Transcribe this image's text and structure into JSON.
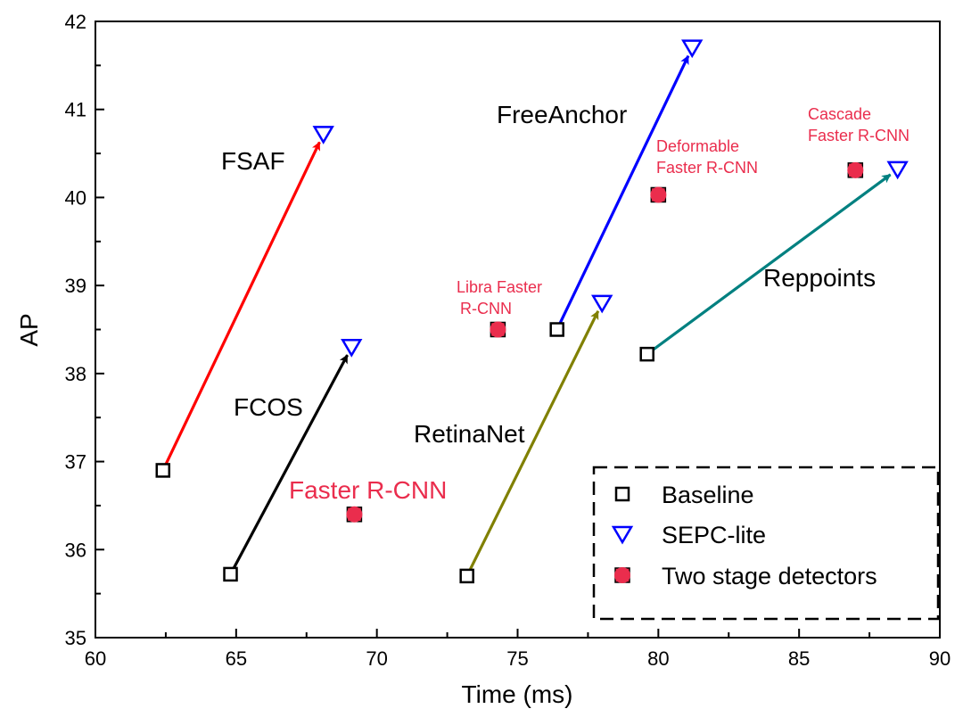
{
  "chart_data": {
    "type": "scatter",
    "xlabel": "Time (ms)",
    "ylabel": "AP",
    "xlim": [
      60,
      90
    ],
    "ylim": [
      35,
      42
    ],
    "xticks": [
      "60",
      "65",
      "70",
      "75",
      "80",
      "85",
      "90"
    ],
    "yticks": [
      "35",
      "36",
      "37",
      "38",
      "39",
      "40",
      "41",
      "42"
    ],
    "grid": false,
    "legend": {
      "placement": "bottom-right",
      "entries": [
        {
          "key": "baseline",
          "label": "Baseline",
          "marker": "open-square",
          "color": "#000000"
        },
        {
          "key": "sepc",
          "label": "SEPC-lite",
          "marker": "open-triangle-down",
          "color": "#0000ff"
        },
        {
          "key": "two_stage",
          "label": "Two stage detectors",
          "marker": "filled-circle-square",
          "color": "#ea2d4d"
        }
      ]
    },
    "pairs": [
      {
        "name": "FSAF",
        "baseline": [
          62.4,
          36.9
        ],
        "sepc": [
          68.1,
          40.72
        ],
        "arrow_color": "#ff0000",
        "label_color": "#000000"
      },
      {
        "name": "FCOS",
        "baseline": [
          64.8,
          35.72
        ],
        "sepc": [
          69.1,
          38.3
        ],
        "arrow_color": "#000000",
        "label_color": "#000000"
      },
      {
        "name": "RetinaNet",
        "baseline": [
          73.2,
          35.7
        ],
        "sepc": [
          78.0,
          38.8
        ],
        "arrow_color": "#808000",
        "label_color": "#000000"
      },
      {
        "name": "FreeAnchor",
        "baseline": [
          76.4,
          38.5
        ],
        "sepc": [
          81.2,
          41.7
        ],
        "arrow_color": "#0000ff",
        "label_color": "#000000"
      },
      {
        "name": "Reppoints",
        "baseline": [
          79.6,
          38.22
        ],
        "sepc": [
          88.5,
          40.32
        ],
        "arrow_color": "#008080",
        "label_color": "#000000"
      }
    ],
    "two_stage": [
      {
        "name": "Faster R-CNN",
        "x": 69.2,
        "y": 36.4
      },
      {
        "name": "Libra Faster R-CNN",
        "x": 74.3,
        "y": 38.5
      },
      {
        "name": "Deformable Faster R-CNN",
        "x": 80.0,
        "y": 40.03
      },
      {
        "name": "Cascade Faster R-CNN",
        "x": 87.0,
        "y": 40.31
      }
    ],
    "annotations": [
      {
        "key": "fsaf",
        "lines": [
          "FSAF"
        ],
        "color": "#000000"
      },
      {
        "key": "fcos",
        "lines": [
          "FCOS"
        ],
        "color": "#000000"
      },
      {
        "key": "retinanet",
        "lines": [
          "RetinaNet"
        ],
        "color": "#000000"
      },
      {
        "key": "freeanchor",
        "lines": [
          "FreeAnchor"
        ],
        "color": "#000000"
      },
      {
        "key": "reppoints",
        "lines": [
          "Reppoints"
        ],
        "color": "#000000"
      },
      {
        "key": "faster_rcnn",
        "lines": [
          "Faster R-CNN"
        ],
        "color": "#ea2d4d"
      },
      {
        "key": "libra",
        "lines": [
          "Libra Faster",
          "R-CNN"
        ],
        "color": "#ea2d4d"
      },
      {
        "key": "deformable",
        "lines": [
          "Deformable",
          "Faster R-CNN"
        ],
        "color": "#ea2d4d"
      },
      {
        "key": "cascade",
        "lines": [
          "Cascade",
          "Faster R-CNN"
        ],
        "color": "#ea2d4d"
      }
    ]
  }
}
